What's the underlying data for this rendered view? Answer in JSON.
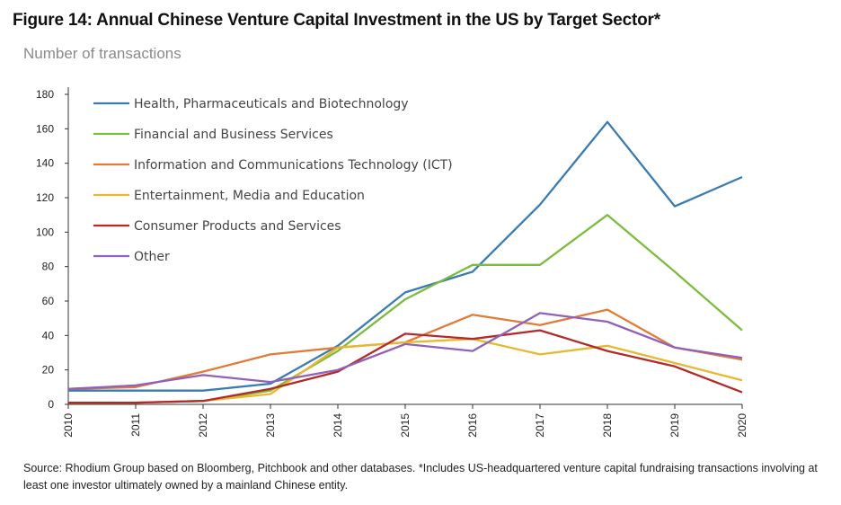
{
  "header": {
    "title": "Figure 14: Annual Chinese Venture Capital Investment in the US by Target Sector*",
    "subtitle": "Number of transactions"
  },
  "footer": {
    "source": "Source: Rhodium Group based on Bloomberg, Pitchbook and other databases. *Includes US-headquartered venture capital fundraising transactions involving at least one investor ultimately owned by a mainland Chinese entity."
  },
  "chart_data": {
    "type": "line",
    "title": "Figure 14: Annual Chinese Venture Capital Investment in the US by Target Sector*",
    "subtitle": "Number of transactions",
    "xlabel": "",
    "ylabel": "",
    "x": [
      "2010",
      "2011",
      "2012",
      "2013",
      "2014",
      "2015",
      "2016",
      "2017",
      "2018",
      "2019",
      "2020"
    ],
    "ylim": [
      0,
      180
    ],
    "yticks": [
      0,
      20,
      40,
      60,
      80,
      100,
      120,
      140,
      160,
      180
    ],
    "grid": false,
    "legend": "top-left",
    "series": [
      {
        "name": "Health, Pharmaceuticals and Biotechnology",
        "color": "#3a7bb0",
        "values": [
          8,
          8,
          8,
          12,
          34,
          65,
          77,
          116,
          164,
          115,
          132
        ]
      },
      {
        "name": "Financial and Business Services",
        "color": "#7dbb3f",
        "values": [
          1,
          1,
          2,
          8,
          31,
          61,
          81,
          81,
          110,
          77,
          43
        ]
      },
      {
        "name": "Information and Communications Technology (ICT)",
        "color": "#e07b39",
        "values": [
          9,
          10,
          19,
          29,
          33,
          36,
          52,
          46,
          55,
          33,
          26
        ]
      },
      {
        "name": "Entertainment, Media and Education",
        "color": "#e8b830",
        "values": [
          1,
          1,
          2,
          6,
          33,
          36,
          38,
          29,
          34,
          24,
          14
        ]
      },
      {
        "name": "Consumer Products and Services",
        "color": "#b22a2a",
        "values": [
          1,
          1,
          2,
          9,
          19,
          41,
          38,
          43,
          31,
          22,
          7
        ]
      },
      {
        "name": "Other",
        "color": "#9160b8",
        "values": [
          9,
          11,
          17,
          13,
          20,
          35,
          31,
          53,
          48,
          33,
          27
        ]
      }
    ]
  }
}
